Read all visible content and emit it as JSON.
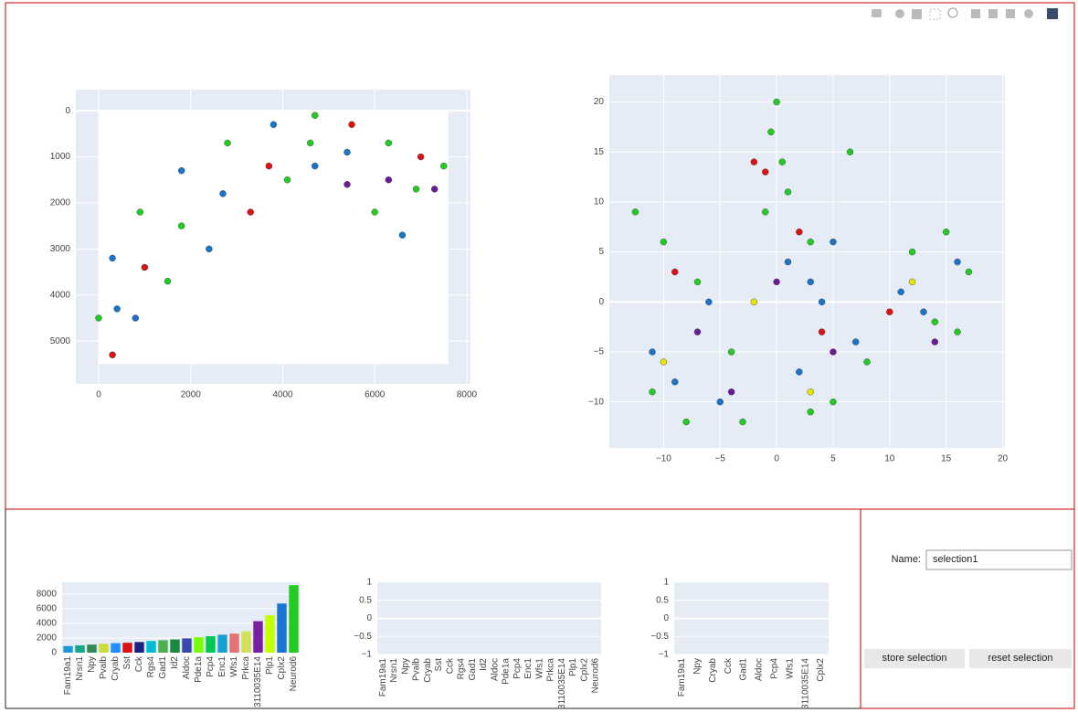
{
  "chart_data": [
    {
      "type": "scatter",
      "xlim": [
        -496,
        8080
      ],
      "ylim": [
        -460,
        5930
      ],
      "yreversed": true,
      "xticks": [
        0,
        2000,
        4000,
        6000,
        8000
      ],
      "yticks": [
        0,
        1000,
        2000,
        3000,
        4000,
        5000
      ],
      "grid": true,
      "series": [
        {
          "color": "#22cc22",
          "x": [
            0,
            900,
            2800,
            4700,
            6300,
            7500,
            1500,
            4100,
            6000,
            1800,
            4600,
            6900
          ],
          "y": [
            4500,
            2200,
            700,
            100,
            700,
            1200,
            3700,
            1500,
            2200,
            2500,
            700,
            1700
          ]
        },
        {
          "color": "#1a75c8",
          "x": [
            300,
            1800,
            3800,
            800,
            2400,
            4700,
            6600,
            400,
            2700,
            5400
          ],
          "y": [
            3200,
            1300,
            300,
            4500,
            3000,
            1200,
            2700,
            4300,
            1800,
            900
          ]
        },
        {
          "color": "#dd1111",
          "x": [
            5500,
            7000,
            300,
            3300,
            1000,
            3700
          ],
          "y": [
            300,
            1000,
            5300,
            2200,
            3400,
            1200
          ]
        },
        {
          "color": "#6a1b9a",
          "x": [
            5400,
            7300,
            6300
          ],
          "y": [
            1600,
            1700,
            1500
          ]
        }
      ]
    },
    {
      "type": "scatter",
      "xlim": [
        -14.8,
        20.2
      ],
      "ylim": [
        -14.6,
        22.7
      ],
      "xticks": [
        {
          "value": -10,
          "label": "−10"
        },
        {
          "value": -5,
          "label": "−5"
        },
        0,
        5,
        10,
        15,
        20
      ],
      "yticks": [
        {
          "value": -10,
          "label": "−10"
        },
        {
          "value": -5,
          "label": "−5"
        },
        0,
        5,
        10,
        15,
        20
      ],
      "grid": true,
      "series": [
        {
          "color": "#22cc22",
          "x": [
            0,
            -0.5,
            0.5,
            1,
            -1,
            3,
            12,
            15,
            17,
            16,
            14,
            -10,
            -7,
            -4,
            -11,
            -8,
            3,
            5,
            8,
            -3,
            6.5,
            -12.5
          ],
          "y": [
            20,
            17,
            14,
            11,
            9,
            6,
            5,
            7,
            3,
            -3,
            -2,
            6,
            2,
            -5,
            -9,
            -12,
            -11,
            -10,
            -6,
            -12,
            15,
            9
          ]
        },
        {
          "color": "#1a75c8",
          "x": [
            1,
            3,
            5,
            11,
            13,
            16,
            -11,
            -9,
            -6,
            -5,
            2,
            7,
            4
          ],
          "y": [
            4,
            2,
            6,
            1,
            -1,
            4,
            -5,
            -8,
            0,
            -10,
            -7,
            -4,
            0
          ]
        },
        {
          "color": "#dd1111",
          "x": [
            -2,
            2,
            -1,
            10,
            -9,
            4
          ],
          "y": [
            14,
            7,
            13,
            -1,
            3,
            -3
          ]
        },
        {
          "color": "#6a1b9a",
          "x": [
            0,
            5,
            -4,
            14,
            -7
          ],
          "y": [
            2,
            -5,
            -9,
            -4,
            -3
          ]
        },
        {
          "color": "#e6e600",
          "x": [
            -2,
            3,
            12,
            -10
          ],
          "y": [
            0,
            -9,
            2,
            -6
          ]
        }
      ]
    },
    {
      "type": "bar",
      "ylim": [
        0,
        9600
      ],
      "yticks": [
        0,
        2000,
        4000,
        6000,
        8000
      ],
      "grid": true,
      "categories": [
        "Fam19a1",
        "Nrsn1",
        "Npy",
        "Pvalb",
        "Cryab",
        "Sst",
        "Cck",
        "Rgs4",
        "Gad1",
        "Id2",
        "Aldoc",
        "Pde1a",
        "Pcp4",
        "Enc1",
        "Wfs1",
        "Prkca",
        "3110035E14",
        "Plp1",
        "Cplx2",
        "Neurod6"
      ],
      "values": [
        900,
        1000,
        1100,
        1200,
        1300,
        1350,
        1450,
        1600,
        1700,
        1800,
        1950,
        2100,
        2250,
        2450,
        2600,
        2900,
        4300,
        5100,
        6700,
        9200
      ],
      "colors": [
        "#1a9ad6",
        "#17a589",
        "#2e8b57",
        "#cddc39",
        "#1e90ff",
        "#dd1111",
        "#1a237e",
        "#00bcd4",
        "#4caf50",
        "#1b8a3a",
        "#3949ab",
        "#76ff03",
        "#00c853",
        "#1aa0d0",
        "#e57373",
        "#d4e157",
        "#7b1fa2",
        "#c6ff00",
        "#1976d2",
        "#22cc22"
      ]
    },
    {
      "type": "bar",
      "ylim": [
        -1,
        1
      ],
      "yticks": [
        {
          "value": -1,
          "label": "−1"
        },
        {
          "value": -0.5,
          "label": "−0.5"
        },
        0,
        0.5,
        1
      ],
      "grid": true,
      "categories": [
        "Fam19a1",
        "Nrsn1",
        "Npy",
        "Pvalb",
        "Cryab",
        "Sst",
        "Cck",
        "Rgs4",
        "Gad1",
        "Id2",
        "Aldoc",
        "Pde1a",
        "Pcp4",
        "Enc1",
        "Wfs1",
        "Prkca",
        "3110035E14",
        "Plp1",
        "Cplx2",
        "Neurod6"
      ],
      "values": [
        null,
        null,
        null,
        null,
        null,
        null,
        null,
        null,
        null,
        null,
        null,
        null,
        null,
        null,
        null,
        null,
        null,
        null,
        null,
        null
      ]
    },
    {
      "type": "bar",
      "ylim": [
        -1,
        1
      ],
      "yticks": [
        {
          "value": -1,
          "label": "−1"
        },
        {
          "value": -0.5,
          "label": "−0.5"
        },
        0,
        0.5,
        1
      ],
      "grid": true,
      "categories": [
        "Fam19a1",
        "Npy",
        "Cryab",
        "Cck",
        "Gad1",
        "Aldoc",
        "Pcp4",
        "Wfs1",
        "3110035E14",
        "Cplx2"
      ],
      "values": [
        null,
        null,
        null,
        null,
        null,
        null,
        null,
        null,
        null,
        null
      ]
    }
  ],
  "form": {
    "name_label": "Name:",
    "name_value": "selection1",
    "buttons": [
      "store selection",
      "reset selection"
    ]
  }
}
